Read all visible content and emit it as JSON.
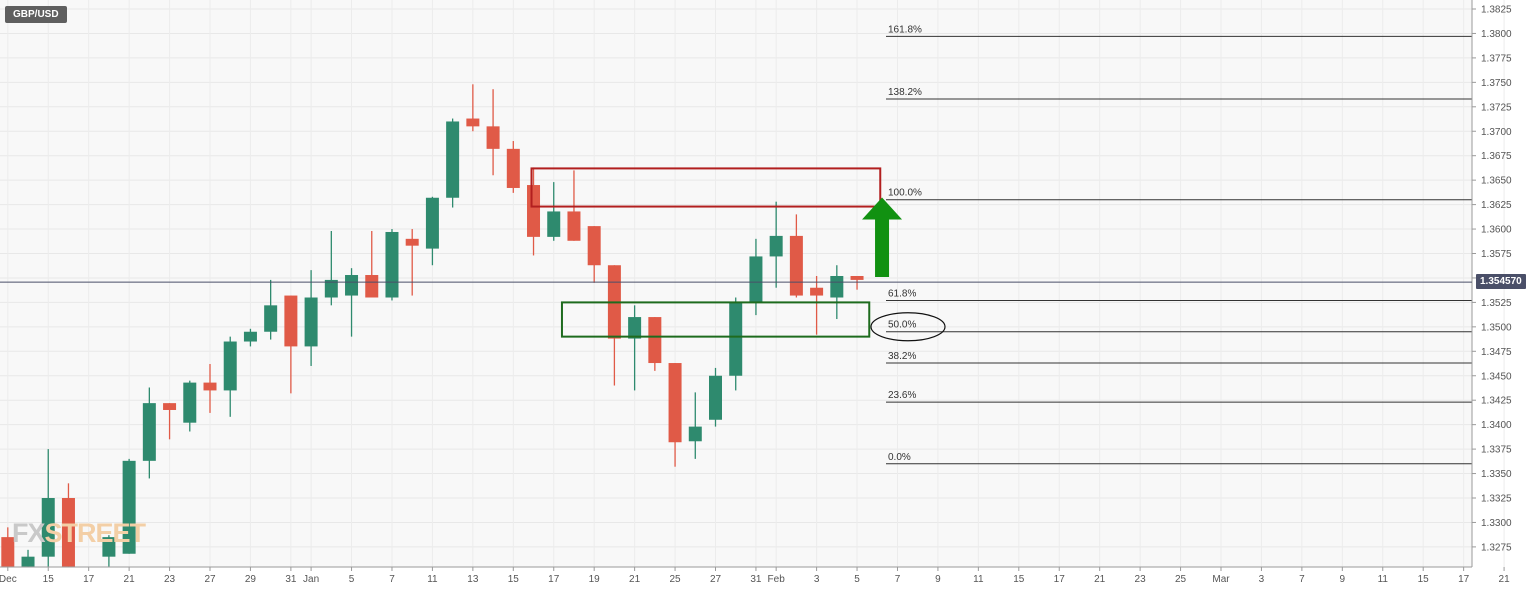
{
  "symbol": "GBP/USD",
  "current_price_label": "1.354570",
  "watermark": {
    "part1": "FX",
    "part2": "STREET"
  },
  "colors": {
    "bull": "#2e8a6e",
    "bear": "#e05a47",
    "price_line": "#4a4f68",
    "resistance_box": "#b21f1f",
    "support_box": "#1e6b1e",
    "arrow": "#119111"
  },
  "chart_data": {
    "type": "candlestick",
    "title": "GBP/USD",
    "ylim": [
      1.3255,
      1.3835
    ],
    "y_ticks": [
      "1.3825",
      "1.3800",
      "1.3775",
      "1.3750",
      "1.3725",
      "1.3700",
      "1.3675",
      "1.3650",
      "1.3625",
      "1.3600",
      "1.3575",
      "1.3550",
      "1.3525",
      "1.3500",
      "1.3475",
      "1.3450",
      "1.3425",
      "1.3400",
      "1.3375",
      "1.3350",
      "1.3325",
      "1.3300",
      "1.3275"
    ],
    "x_ticks": [
      {
        "label": "Dec",
        "i": 0
      },
      {
        "label": "15",
        "i": 2
      },
      {
        "label": "17",
        "i": 4
      },
      {
        "label": "21",
        "i": 6
      },
      {
        "label": "23",
        "i": 8
      },
      {
        "label": "27",
        "i": 10
      },
      {
        "label": "29",
        "i": 12
      },
      {
        "label": "31",
        "i": 14
      },
      {
        "label": "Jan",
        "i": 15
      },
      {
        "label": "5",
        "i": 17
      },
      {
        "label": "7",
        "i": 19
      },
      {
        "label": "11",
        "i": 21
      },
      {
        "label": "13",
        "i": 23
      },
      {
        "label": "15",
        "i": 25
      },
      {
        "label": "17",
        "i": 27
      },
      {
        "label": "19",
        "i": 29
      },
      {
        "label": "21",
        "i": 31
      },
      {
        "label": "25",
        "i": 33
      },
      {
        "label": "27",
        "i": 35
      },
      {
        "label": "31",
        "i": 37
      },
      {
        "label": "Feb",
        "i": 38
      },
      {
        "label": "3",
        "i": 40
      },
      {
        "label": "5",
        "i": 42
      },
      {
        "label": "7",
        "i": 44
      },
      {
        "label": "9",
        "i": 46
      },
      {
        "label": "11",
        "i": 48
      },
      {
        "label": "15",
        "i": 50
      },
      {
        "label": "17",
        "i": 52
      },
      {
        "label": "21",
        "i": 54
      },
      {
        "label": "23",
        "i": 56
      },
      {
        "label": "25",
        "i": 58
      },
      {
        "label": "Mar",
        "i": 60
      },
      {
        "label": "3",
        "i": 62
      },
      {
        "label": "7",
        "i": 64
      },
      {
        "label": "9",
        "i": 66
      },
      {
        "label": "11",
        "i": 68
      },
      {
        "label": "15",
        "i": 70
      },
      {
        "label": "17",
        "i": 72
      },
      {
        "label": "21",
        "i": 74
      },
      {
        "label": "23",
        "i": 76
      }
    ],
    "candles": [
      {
        "i": 0,
        "o": 1.3285,
        "h": 1.3295,
        "l": 1.3255,
        "c": 1.3255
      },
      {
        "i": 1,
        "o": 1.3255,
        "h": 1.3272,
        "l": 1.3255,
        "c": 1.3265
      },
      {
        "i": 2,
        "o": 1.3265,
        "h": 1.3375,
        "l": 1.3255,
        "c": 1.3325
      },
      {
        "i": 3,
        "o": 1.3325,
        "h": 1.334,
        "l": 1.3255,
        "c": 1.3255
      },
      {
        "i": 5,
        "o": 1.3265,
        "h": 1.3287,
        "l": 1.3255,
        "c": 1.3285
      },
      {
        "i": 6,
        "o": 1.3268,
        "h": 1.3365,
        "l": 1.3268,
        "c": 1.3363
      },
      {
        "i": 7,
        "o": 1.3363,
        "h": 1.3438,
        "l": 1.3345,
        "c": 1.3422
      },
      {
        "i": 8,
        "o": 1.3422,
        "h": 1.3422,
        "l": 1.3385,
        "c": 1.3415
      },
      {
        "i": 9,
        "o": 1.3402,
        "h": 1.3445,
        "l": 1.3393,
        "c": 1.3443
      },
      {
        "i": 10,
        "o": 1.3443,
        "h": 1.3462,
        "l": 1.3412,
        "c": 1.3435
      },
      {
        "i": 11,
        "o": 1.3435,
        "h": 1.349,
        "l": 1.3408,
        "c": 1.3485
      },
      {
        "i": 12,
        "o": 1.3485,
        "h": 1.3498,
        "l": 1.348,
        "c": 1.3495
      },
      {
        "i": 13,
        "o": 1.3495,
        "h": 1.3548,
        "l": 1.3487,
        "c": 1.3522
      },
      {
        "i": 14,
        "o": 1.3532,
        "h": 1.3532,
        "l": 1.3432,
        "c": 1.348
      },
      {
        "i": 15,
        "o": 1.348,
        "h": 1.3558,
        "l": 1.346,
        "c": 1.353
      },
      {
        "i": 16,
        "o": 1.353,
        "h": 1.3598,
        "l": 1.3522,
        "c": 1.3548
      },
      {
        "i": 17,
        "o": 1.3532,
        "h": 1.356,
        "l": 1.349,
        "c": 1.3553
      },
      {
        "i": 18,
        "o": 1.3553,
        "h": 1.3598,
        "l": 1.353,
        "c": 1.353
      },
      {
        "i": 19,
        "o": 1.353,
        "h": 1.36,
        "l": 1.3527,
        "c": 1.3597
      },
      {
        "i": 20,
        "o": 1.359,
        "h": 1.36,
        "l": 1.3532,
        "c": 1.3583
      },
      {
        "i": 21,
        "o": 1.358,
        "h": 1.3633,
        "l": 1.3563,
        "c": 1.3632
      },
      {
        "i": 22,
        "o": 1.3632,
        "h": 1.3713,
        "l": 1.3622,
        "c": 1.371
      },
      {
        "i": 23,
        "o": 1.3713,
        "h": 1.3748,
        "l": 1.37,
        "c": 1.3705
      },
      {
        "i": 24,
        "o": 1.3705,
        "h": 1.3743,
        "l": 1.3655,
        "c": 1.3682
      },
      {
        "i": 25,
        "o": 1.3682,
        "h": 1.369,
        "l": 1.3637,
        "c": 1.3642
      },
      {
        "i": 26,
        "o": 1.3645,
        "h": 1.3663,
        "l": 1.3573,
        "c": 1.3592
      },
      {
        "i": 27,
        "o": 1.3592,
        "h": 1.3648,
        "l": 1.3588,
        "c": 1.3618
      },
      {
        "i": 28,
        "o": 1.3618,
        "h": 1.366,
        "l": 1.3588,
        "c": 1.3588
      },
      {
        "i": 29,
        "o": 1.3603,
        "h": 1.3603,
        "l": 1.3545,
        "c": 1.3563
      },
      {
        "i": 30,
        "o": 1.3563,
        "h": 1.3563,
        "l": 1.344,
        "c": 1.3488
      },
      {
        "i": 31,
        "o": 1.3488,
        "h": 1.3522,
        "l": 1.3435,
        "c": 1.351
      },
      {
        "i": 32,
        "o": 1.351,
        "h": 1.351,
        "l": 1.3455,
        "c": 1.3463
      },
      {
        "i": 33,
        "o": 1.3463,
        "h": 1.3463,
        "l": 1.3357,
        "c": 1.3382
      },
      {
        "i": 34,
        "o": 1.3383,
        "h": 1.3433,
        "l": 1.3365,
        "c": 1.3398
      },
      {
        "i": 35,
        "o": 1.3405,
        "h": 1.3458,
        "l": 1.3398,
        "c": 1.345
      },
      {
        "i": 36,
        "o": 1.345,
        "h": 1.353,
        "l": 1.3435,
        "c": 1.3525
      },
      {
        "i": 37,
        "o": 1.3525,
        "h": 1.359,
        "l": 1.3512,
        "c": 1.3572
      },
      {
        "i": 38,
        "o": 1.3572,
        "h": 1.3628,
        "l": 1.354,
        "c": 1.3593
      },
      {
        "i": 39,
        "o": 1.3593,
        "h": 1.3615,
        "l": 1.353,
        "c": 1.3532
      },
      {
        "i": 40,
        "o": 1.354,
        "h": 1.3552,
        "l": 1.3492,
        "c": 1.3532
      },
      {
        "i": 41,
        "o": 1.353,
        "h": 1.3563,
        "l": 1.3508,
        "c": 1.3552
      },
      {
        "i": 42,
        "o": 1.3552,
        "h": 1.3552,
        "l": 1.3538,
        "c": 1.3548
      }
    ],
    "fib_levels": [
      {
        "label": "161.8%",
        "value": 1.3797
      },
      {
        "label": "138.2%",
        "value": 1.3733
      },
      {
        "label": "100.0%",
        "value": 1.363
      },
      {
        "label": "61.8%",
        "value": 1.3527
      },
      {
        "label": "50.0%",
        "value": 1.3495
      },
      {
        "label": "38.2%",
        "value": 1.3463
      },
      {
        "label": "23.6%",
        "value": 1.3423
      },
      {
        "label": "0.0%",
        "value": 1.336
      }
    ],
    "annotations": {
      "resistance_zone": {
        "i_from": 26,
        "i_to": 43,
        "y_low": 1.3623,
        "y_high": 1.3662
      },
      "support_zone": {
        "i_from": 28,
        "i_to": 43,
        "y_low": 1.349,
        "y_high": 1.3525
      },
      "circle_on": "50.0%",
      "arrow": {
        "i": 42,
        "from": 1.3555,
        "to": 1.362,
        "direction": "up"
      }
    },
    "current_price": 1.35457,
    "grid": true
  }
}
